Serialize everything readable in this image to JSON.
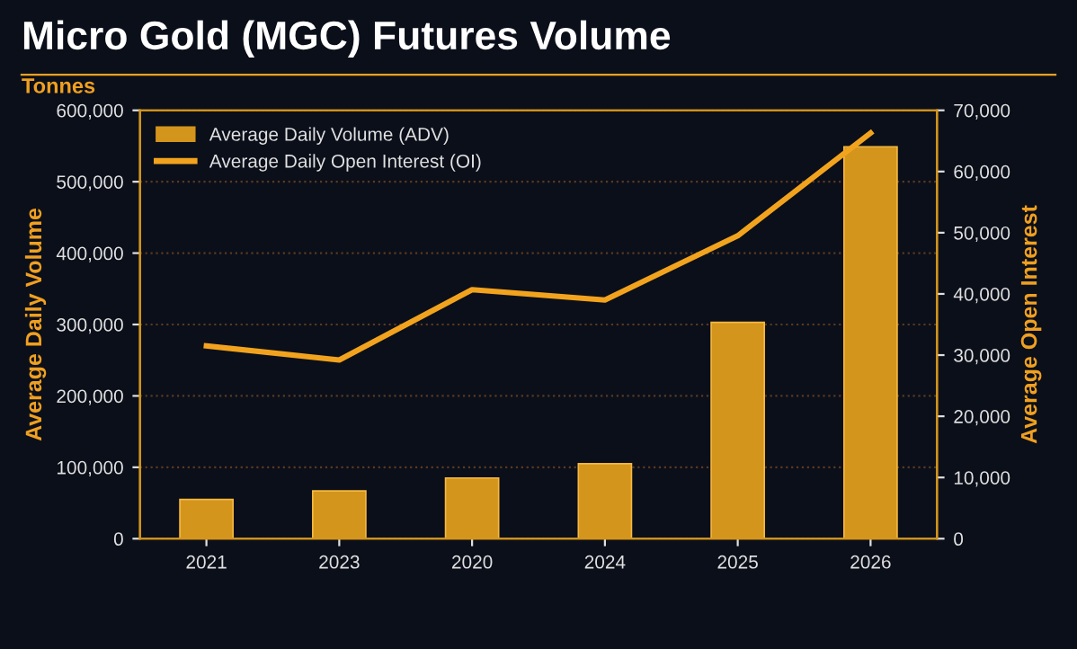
{
  "chart_data": {
    "type": "bar",
    "title": "Micro Gold (MGC) Futures Volume",
    "subtitle": "Tonnes",
    "ylabel": "Average Daily Volume",
    "y2label": "Average Open Interest",
    "categories": [
      "2021",
      "2023",
      "2020",
      "2024",
      "2025",
      "2026"
    ],
    "series": [
      {
        "name": "Average Daily Volume (ADV)",
        "color": "#d4951c",
        "values": [
          55000,
          67000,
          85000,
          105000,
          303000,
          549000
        ]
      },
      {
        "name": "Average Daily Open Interest (OI)",
        "type": "line",
        "axis": "y2",
        "color": "#f2a31e",
        "values": [
          31500,
          29200,
          40700,
          39000,
          49500,
          66300
        ]
      }
    ],
    "ylim": [
      0,
      600000
    ],
    "yticks": [
      {
        "value": 0,
        "label": "0"
      },
      {
        "value": 100000,
        "label": "100,000"
      },
      {
        "value": 200000,
        "label": "200,000"
      },
      {
        "value": 300000,
        "label": "300,000"
      },
      {
        "value": 400000,
        "label": "400,000"
      },
      {
        "value": 500000,
        "label": "500,000"
      },
      {
        "value": 600000,
        "label": "600,000"
      }
    ],
    "y2lim": [
      0,
      70000
    ],
    "y2ticks": [
      {
        "value": 0,
        "label": "0"
      },
      {
        "value": 10000,
        "label": "10,000"
      },
      {
        "value": 20000,
        "label": "20,000"
      },
      {
        "value": 30000,
        "label": "30,000"
      },
      {
        "value": 40000,
        "label": "40,000"
      },
      {
        "value": 50000,
        "label": "50,000"
      },
      {
        "value": 60000,
        "label": "60,000"
      },
      {
        "value": 70000,
        "label": "70,000"
      }
    ],
    "grid": true,
    "legend": "top left",
    "marker": "none",
    "line_style": "solid"
  }
}
